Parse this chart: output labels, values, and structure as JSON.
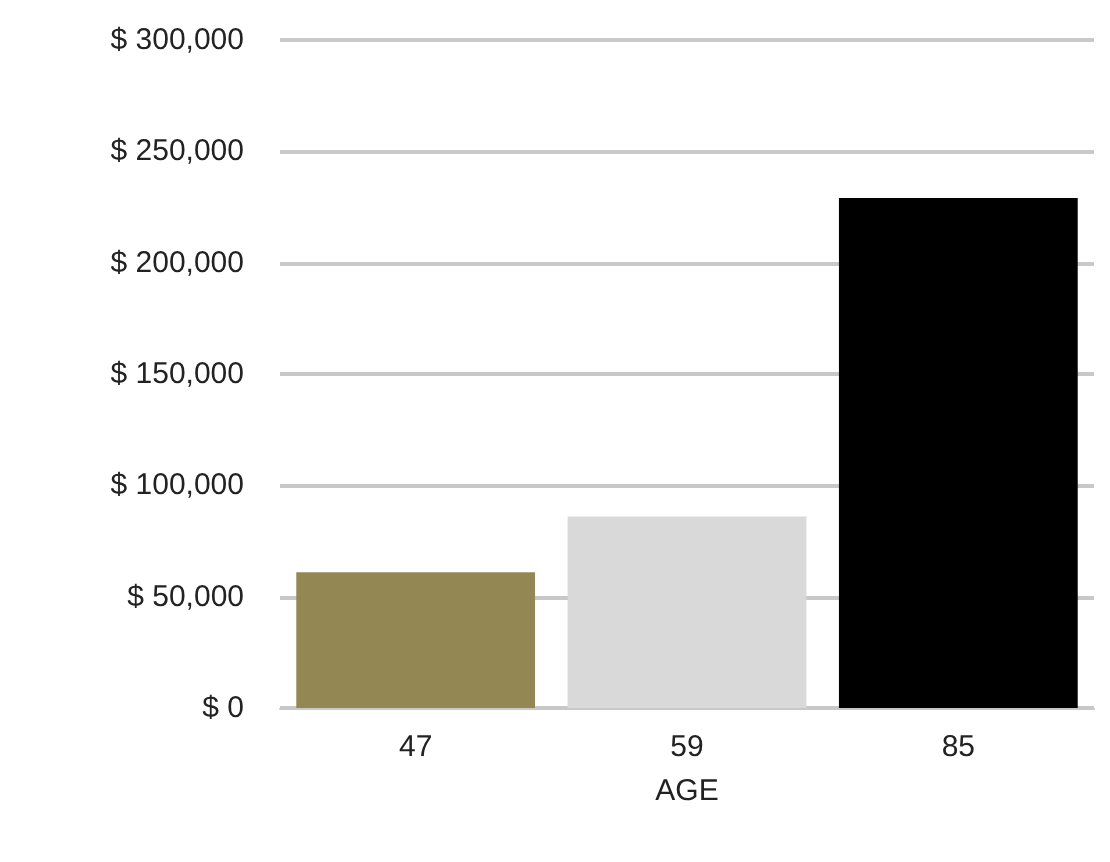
{
  "chart_data": {
    "type": "bar",
    "xlabel": "AGE",
    "categories": [
      "47",
      "59",
      "85"
    ],
    "values": [
      61000,
      86000,
      229000
    ],
    "colors": [
      "#938853",
      "#d9d9d9",
      "#000000"
    ],
    "ylim": [
      0,
      300000
    ],
    "yticks": [
      {
        "value": 0,
        "label": "$ 0"
      },
      {
        "value": 50000,
        "label": "$ 50,000"
      },
      {
        "value": 100000,
        "label": "$ 100,000"
      },
      {
        "value": 150000,
        "label": "$ 150,000"
      },
      {
        "value": 200000,
        "label": "$ 200,000"
      },
      {
        "value": 250000,
        "label": "$ 250,000"
      },
      {
        "value": 300000,
        "label": "$ 300,000"
      }
    ],
    "grid": "y"
  }
}
